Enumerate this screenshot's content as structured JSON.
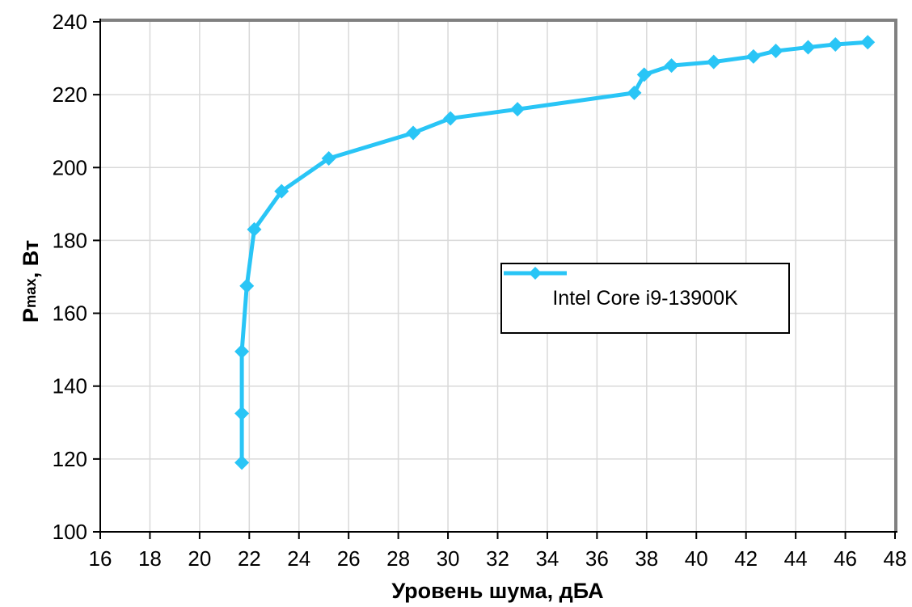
{
  "chart_data": {
    "type": "line",
    "title": "",
    "xlabel": "Уровень шума, дБА",
    "ylabel": "Pmax, Вт",
    "ylabel_symbol": "P",
    "ylabel_subscript": "max",
    "ylabel_suffix": ", Вт",
    "xlim": [
      16,
      48
    ],
    "ylim": [
      100,
      240
    ],
    "xticks": [
      16,
      18,
      20,
      22,
      24,
      26,
      28,
      30,
      32,
      34,
      36,
      38,
      40,
      42,
      44,
      46,
      48
    ],
    "yticks": [
      100,
      120,
      140,
      160,
      180,
      200,
      220,
      240
    ],
    "grid": true,
    "legend_position": "center-right",
    "series": [
      {
        "name": "Intel Core i9-13900K",
        "color": "#29C5F6",
        "marker": "diamond",
        "points": [
          [
            21.7,
            119
          ],
          [
            21.7,
            132.5
          ],
          [
            21.7,
            149.5
          ],
          [
            21.9,
            167.5
          ],
          [
            22.2,
            183
          ],
          [
            23.3,
            193.5
          ],
          [
            25.2,
            202.5
          ],
          [
            28.6,
            209.5
          ],
          [
            30.1,
            213.5
          ],
          [
            32.8,
            216
          ],
          [
            37.5,
            220.5
          ],
          [
            37.9,
            225.5
          ],
          [
            39.0,
            228
          ],
          [
            40.7,
            229
          ],
          [
            42.3,
            230.5
          ],
          [
            43.2,
            232
          ],
          [
            44.5,
            233
          ],
          [
            45.6,
            233.8
          ],
          [
            46.9,
            234.4
          ]
        ]
      }
    ]
  },
  "colors": {
    "background": "#FFFFFF",
    "grid": "#D9D9D9",
    "axis": "#000000",
    "plot_border": "#808080",
    "text": "#000000"
  }
}
